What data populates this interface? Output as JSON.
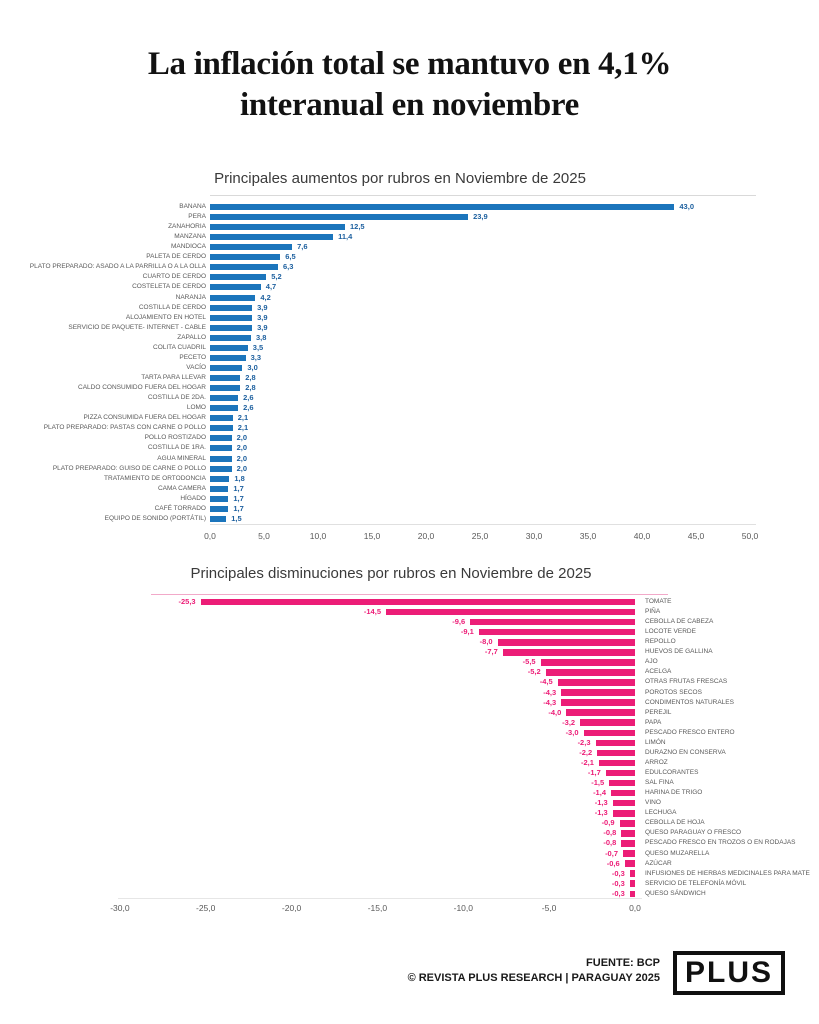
{
  "title": {
    "line1": "La inflación total se mantuvo en 4,1%",
    "line2": "interanual en noviembre"
  },
  "chart_data": [
    {
      "type": "bar",
      "orientation": "horizontal",
      "title": "Principales aumentos por rubros en Noviembre de 2025",
      "categories": [
        "BANANA",
        "PERA",
        "ZANAHORIA",
        "MANZANA",
        "MANDIOCA",
        "PALETA DE CERDO",
        "PLATO PREPARADO: ASADO A LA PARRILLA O A LA OLLA",
        "CUARTO DE CERDO",
        "COSTELETA DE CERDO",
        "NARANJA",
        "COSTILLA DE CERDO",
        "ALOJAMIENTO EN HOTEL",
        "SERVICIO DE PAQUETE- INTERNET - CABLE",
        "ZAPALLO",
        "COLITA CUADRIL",
        "PECETO",
        "VACÍO",
        "TARTA PARA LLEVAR",
        "CALDO CONSUMIDO FUERA DEL HOGAR",
        "COSTILLA DE 2DA.",
        "LOMO",
        "PIZZA CONSUMIDA FUERA DEL HOGAR",
        "PLATO PREPARADO: PASTAS CON CARNE O POLLO",
        "POLLO ROSTIZADO",
        "COSTILLA DE 1RA.",
        "AGUA MINERAL",
        "PLATO PREPARADO: GUISO DE CARNE O POLLO",
        "TRATAMIENTO DE ORTODONCIA",
        "CAMA CAMERA",
        "HÍGADO",
        "CAFÉ TORRADO",
        "EQUIPO DE SONIDO (PORTÁTIL)"
      ],
      "values": [
        43.0,
        23.9,
        12.5,
        11.4,
        7.6,
        6.5,
        6.3,
        5.2,
        4.7,
        4.2,
        3.9,
        3.9,
        3.9,
        3.8,
        3.5,
        3.3,
        3.0,
        2.8,
        2.8,
        2.6,
        2.6,
        2.1,
        2.1,
        2.0,
        2.0,
        2.0,
        2.0,
        1.8,
        1.7,
        1.7,
        1.7,
        1.5
      ],
      "x_ticks": [
        "0,0",
        "5,0",
        "10,0",
        "15,0",
        "20,0",
        "25,0",
        "30,0",
        "35,0",
        "40,0",
        "45,0",
        "50,0"
      ],
      "xlim": [
        0,
        50
      ],
      "xlabel": "",
      "ylabel": "",
      "grid": false,
      "value_labels": true,
      "bar_color": "#1b75bc",
      "value_color": "#1c5f9e"
    },
    {
      "type": "bar",
      "orientation": "horizontal",
      "title": "Principales disminuciones por rubros  en Noviembre de 2025",
      "categories": [
        "TOMATE",
        "PIÑA",
        "CEBOLLA DE CABEZA",
        "LOCOTE VERDE",
        "REPOLLO",
        "HUEVOS DE GALLINA",
        "AJO",
        "ACELGA",
        "OTRAS FRUTAS FRESCAS",
        "POROTOS SECOS",
        "CONDIMENTOS NATURALES",
        "PEREJIL",
        "PAPA",
        "PESCADO FRESCO ENTERO",
        "LIMÓN",
        "DURAZNO EN CONSERVA",
        "ARROZ",
        "EDULCORANTES",
        "SAL FINA",
        "HARINA DE TRIGO",
        "VINO",
        "LECHUGA",
        "CEBOLLA DE HOJA",
        "QUESO PARAGUAY O FRESCO",
        "PESCADO FRESCO EN TROZOS O EN RODAJAS",
        "QUESO MUZARELLA",
        "AZÚCAR",
        "INFUSIONES DE HIERBAS MEDICINALES PARA MATE",
        "SERVICIO DE TELEFONÍA MÓVIL",
        "QUESO SÁNDWICH"
      ],
      "values": [
        -25.3,
        -14.5,
        -9.6,
        -9.1,
        -8.0,
        -7.7,
        -5.5,
        -5.2,
        -4.5,
        -4.3,
        -4.3,
        -4.0,
        -3.2,
        -3.0,
        -2.3,
        -2.2,
        -2.1,
        -1.7,
        -1.5,
        -1.4,
        -1.3,
        -1.3,
        -0.9,
        -0.8,
        -0.8,
        -0.7,
        -0.6,
        -0.3,
        -0.3,
        -0.3
      ],
      "x_ticks": [
        "-30,0",
        "-25,0",
        "-20,0",
        "-15,0",
        "-10,0",
        "-5,0",
        "0,0"
      ],
      "xlim": [
        -30,
        0
      ],
      "xlabel": "",
      "ylabel": "",
      "grid": false,
      "value_labels": true,
      "bar_color": "#ec1d77",
      "value_color": "#ec1d77"
    }
  ],
  "footer": {
    "source": "FUENTE: BCP",
    "credit": "© REVISTA PLUS RESEARCH | PARAGUAY 2025",
    "logo": "PLUS"
  }
}
